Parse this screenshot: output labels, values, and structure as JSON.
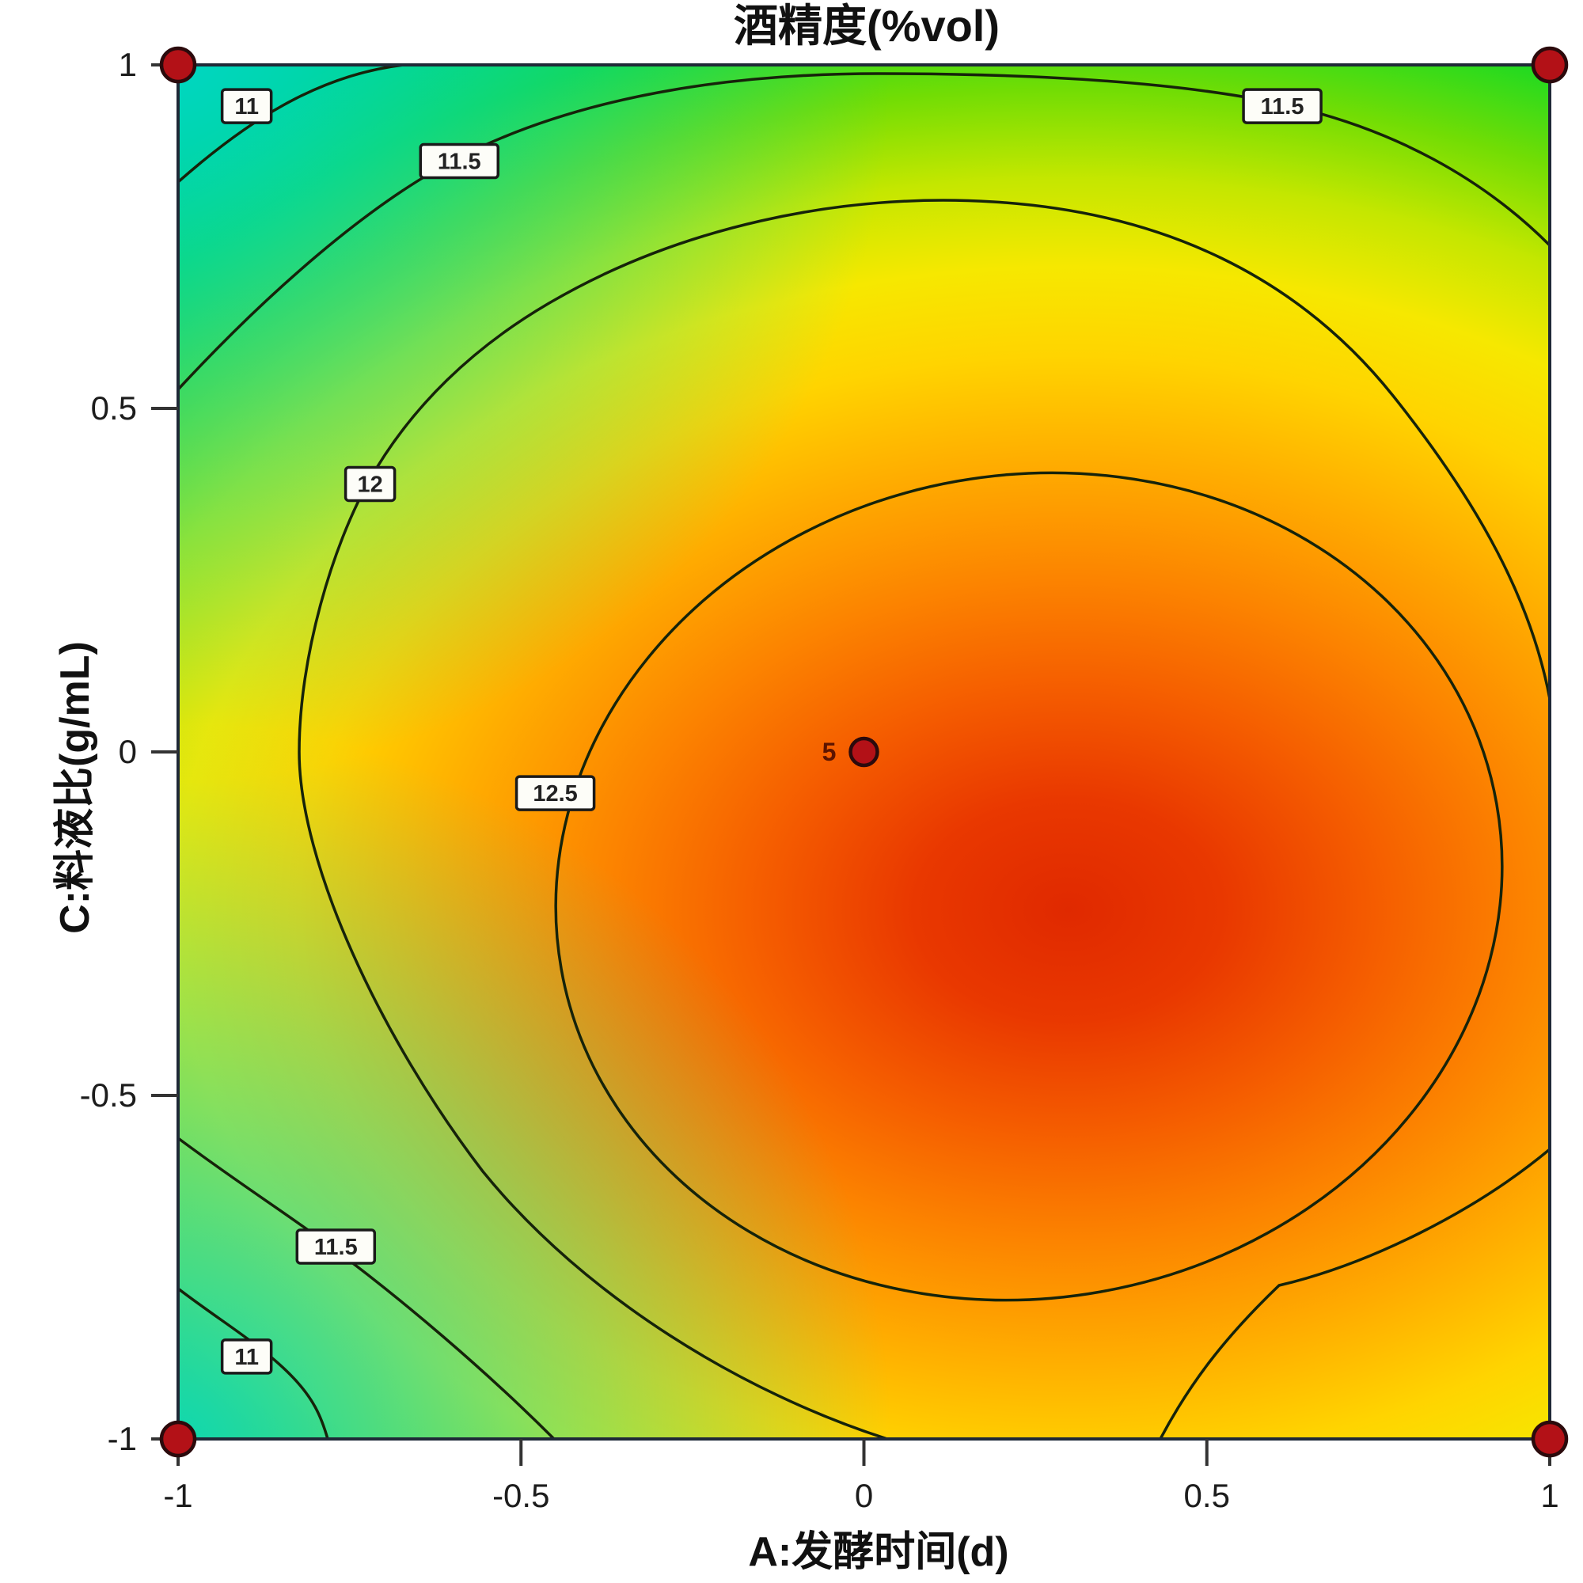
{
  "title": "酒精度(%vol)",
  "chart_data": {
    "type": "contour",
    "title": "酒精度(%vol)",
    "xlabel": "A:发酵时间(d)",
    "ylabel": "C:料液比(g/mL)",
    "xlim": [
      -1,
      1
    ],
    "ylim": [
      -1,
      1
    ],
    "x_ticks": [
      "-1",
      "-0.5",
      "0",
      "0.5",
      "1"
    ],
    "y_ticks": [
      "1",
      "0.5",
      "0",
      "-0.5",
      "-1"
    ],
    "grid": false,
    "legend_position": "none",
    "contour_levels": [
      11,
      11.5,
      12,
      12.5
    ],
    "contour_labels": [
      {
        "value": "11",
        "x": -0.9,
        "y": 0.94
      },
      {
        "value": "11.5",
        "x": -0.59,
        "y": 0.86
      },
      {
        "value": "11.5",
        "x": 0.61,
        "y": 0.94
      },
      {
        "value": "12",
        "x": -0.72,
        "y": 0.39
      },
      {
        "value": "12.5",
        "x": -0.45,
        "y": -0.06
      },
      {
        "value": "11.5",
        "x": -0.77,
        "y": -0.72
      },
      {
        "value": "11",
        "x": -0.9,
        "y": -0.88
      }
    ],
    "design_points": [
      {
        "x": -1,
        "y": 1,
        "count_label": ""
      },
      {
        "x": 1,
        "y": 1,
        "count_label": ""
      },
      {
        "x": -1,
        "y": -1,
        "count_label": ""
      },
      {
        "x": 1,
        "y": -1,
        "count_label": ""
      },
      {
        "x": 0,
        "y": 0,
        "count_label": "5"
      }
    ],
    "surface": {
      "hot_center_x": 0.3,
      "hot_center_y": -0.23,
      "min_level_shown": 11,
      "max_level_shown": 12.5
    },
    "colors": {
      "cyan_low": "#00d4c0",
      "green": "#1eda22",
      "yellow": "#ffd400",
      "orange": "#fc8400",
      "red_high": "#e02900",
      "design_point_fill": "#b31117",
      "design_point_stroke": "#2b0a0c",
      "contour_line": "#16230a"
    }
  }
}
